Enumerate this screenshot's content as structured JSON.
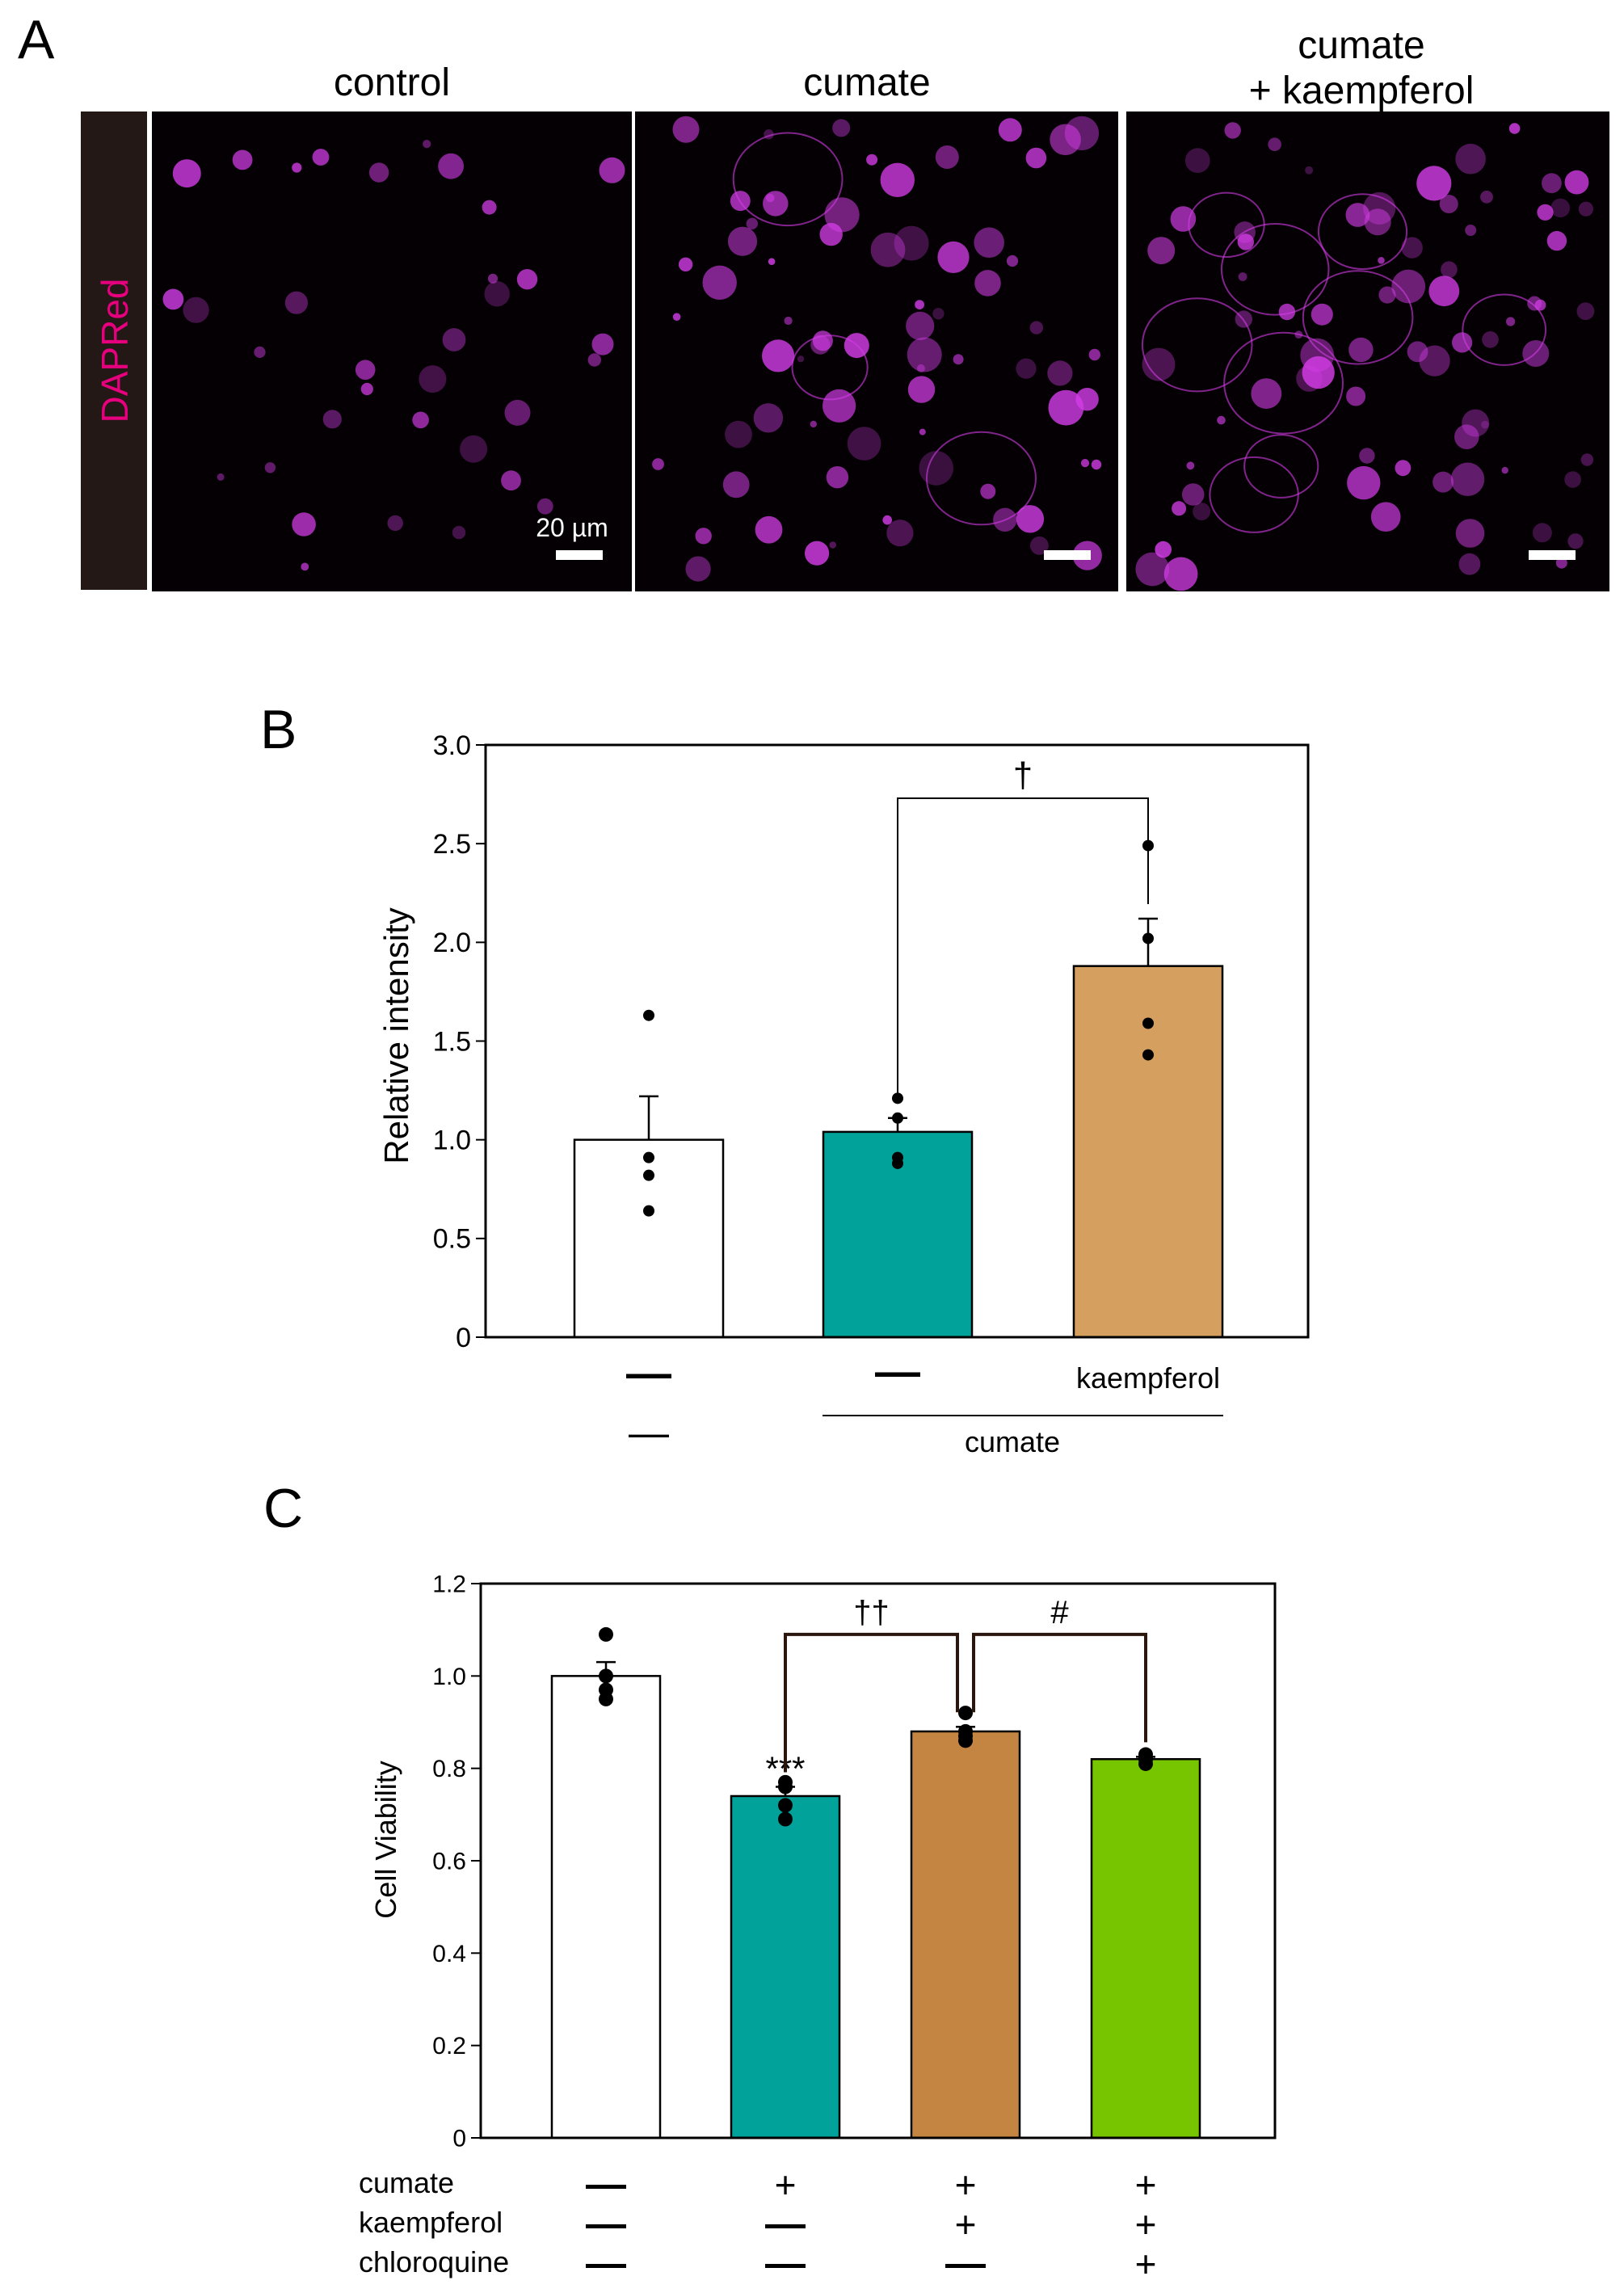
{
  "panel_a": {
    "letter": "A",
    "row_label": "DAPRed",
    "row_label_color": "#e6007e",
    "stain_color": "#d23ce6",
    "scale_bar_label": "20 µm",
    "columns": [
      {
        "label_lines": [
          "control"
        ]
      },
      {
        "label_lines": [
          "cumate"
        ]
      },
      {
        "label_lines": [
          "cumate",
          "+ kaempferol"
        ]
      }
    ]
  },
  "chart_data": [
    {
      "panel": "B",
      "type": "bar",
      "ylabel": "Relative intensity",
      "ylim": [
        0,
        3.0
      ],
      "yticks": [
        0,
        0.5,
        1.0,
        1.5,
        2.0,
        2.5,
        3.0
      ],
      "ytick_labels": [
        "0",
        "0.5",
        "1.0",
        "1.5",
        "2.0",
        "2.5",
        "3.0"
      ],
      "categories_row1": [
        "—",
        "—",
        "kaempferol"
      ],
      "row2": {
        "left_label": "—",
        "group_label": "cumate"
      },
      "values": [
        1.0,
        1.04,
        1.88
      ],
      "errors": [
        0.22,
        0.07,
        0.24
      ],
      "colors": [
        "#ffffff",
        "#00a29a",
        "#d5a05f"
      ],
      "points": [
        [
          1.63,
          0.91,
          0.82,
          0.64
        ],
        [
          1.21,
          1.11,
          0.91,
          0.88
        ],
        [
          2.49,
          2.02,
          1.59,
          1.43
        ]
      ],
      "significance": [
        {
          "from": 1,
          "to": 2,
          "symbol": "†",
          "y": 2.73
        }
      ],
      "grid": false
    },
    {
      "panel": "C",
      "type": "bar",
      "ylabel": "Cell Viability",
      "ylim": [
        0,
        1.2
      ],
      "yticks": [
        0,
        0.2,
        0.4,
        0.6,
        0.8,
        1.0,
        1.2
      ],
      "ytick_labels": [
        "0",
        "0.2",
        "0.4",
        "0.6",
        "0.8",
        "1.0",
        "1.2"
      ],
      "factors": [
        {
          "label": "cumate",
          "marks": [
            "—",
            "+",
            "+",
            "+"
          ]
        },
        {
          "label": "kaempferol",
          "marks": [
            "—",
            "—",
            "+",
            "+"
          ]
        },
        {
          "label": "chloroquine",
          "marks": [
            "—",
            "—",
            "—",
            "+"
          ]
        }
      ],
      "values": [
        1.0,
        0.74,
        0.88,
        0.82
      ],
      "errors": [
        0.03,
        0.02,
        0.01,
        0.005
      ],
      "colors": [
        "#ffffff",
        "#00a29a",
        "#c48442",
        "#76c500"
      ],
      "points": [
        [
          1.09,
          1.0,
          0.97,
          0.95
        ],
        [
          0.77,
          0.76,
          0.72,
          0.69
        ],
        [
          0.92,
          0.88,
          0.87,
          0.86
        ],
        [
          0.83,
          0.82,
          0.82,
          0.81
        ]
      ],
      "bar_annotations": [
        {
          "index": 1,
          "text": "***"
        }
      ],
      "significance": [
        {
          "from": 1,
          "to": 2,
          "symbol": "††",
          "y": 1.09
        },
        {
          "from": 2,
          "to": 3,
          "symbol": "#",
          "y": 1.09
        }
      ],
      "grid": false
    }
  ]
}
